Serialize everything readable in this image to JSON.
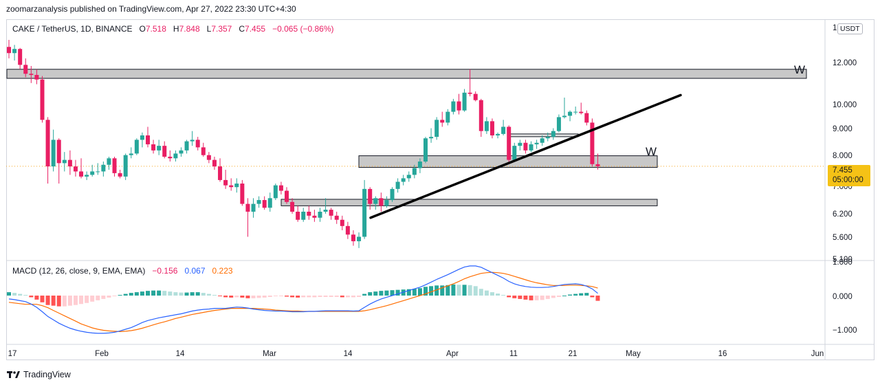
{
  "header": {
    "published": "zoomarzanalysis published on TradingView.com, Apr 27, 2022 23:30 UTC+4:30"
  },
  "legend": {
    "symbol": "CAKE / TetherUS, 1D, BINANCE",
    "o_label": "O",
    "o_value": "7.518",
    "h_label": "H",
    "h_value": "7.848",
    "l_label": "L",
    "l_value": "7.357",
    "c_label": "C",
    "c_value": "7.455",
    "change": "−0.065 (−0.86%)"
  },
  "macd_legend": {
    "name": "MACD (12, 26, close, 9, EMA, EMA)",
    "hist_value": "−0.156",
    "macd_value": "0.067",
    "signal_value": "0.223"
  },
  "currency_button": "USDT",
  "price_badge": {
    "price": "7.455",
    "countdown": "05:00:00"
  },
  "footer": {
    "brand": "TradingView"
  },
  "colors": {
    "up": "#26a69a",
    "down": "#e91e63",
    "macd_line": "#2962ff",
    "signal_line": "#ff6d00",
    "hist_up_strong": "#26a69a",
    "hist_up_weak": "#b2dfdb",
    "hist_down_strong": "#ff5252",
    "hist_down_weak": "#ffcdd2",
    "zone_fill": "#c8c8c8",
    "badge": "#f5c216"
  },
  "chart_data": [
    {
      "type": "candlestick",
      "title": "CAKE / TetherUS, 1D, BINANCE",
      "scale": "log",
      "price_axis_ticks": [
        "1",
        "12.000",
        "10.000",
        "9.000",
        "8.000",
        "7.000",
        "6.200",
        "5.600",
        "5.100"
      ],
      "time_axis_ticks": [
        "17",
        "Feb",
        "14",
        "Mar",
        "14",
        "Apr",
        "11",
        "21",
        "May",
        "16",
        "Jun"
      ],
      "ylim": [
        5.1,
        13.5
      ],
      "last_price": 7.455,
      "candles_ohlc": [
        [
          12.1,
          12.45,
          11.55,
          11.8
        ],
        [
          11.8,
          12.2,
          11.45,
          12.0
        ],
        [
          12.0,
          12.05,
          11.05,
          11.25
        ],
        [
          11.25,
          11.55,
          10.7,
          10.85
        ],
        [
          10.85,
          11.2,
          10.45,
          10.8
        ],
        [
          10.8,
          11.05,
          10.4,
          10.6
        ],
        [
          10.6,
          10.75,
          8.9,
          9.0
        ],
        [
          9.0,
          9.1,
          6.95,
          7.45
        ],
        [
          7.45,
          8.65,
          7.3,
          8.3
        ],
        [
          8.3,
          8.35,
          6.95,
          7.55
        ],
        [
          7.55,
          7.9,
          7.3,
          7.65
        ],
        [
          7.65,
          7.95,
          7.2,
          7.45
        ],
        [
          7.45,
          7.65,
          7.15,
          7.3
        ],
        [
          7.3,
          7.7,
          7.1,
          7.15
        ],
        [
          7.15,
          7.3,
          7.05,
          7.2
        ],
        [
          7.2,
          7.5,
          7.15,
          7.3
        ],
        [
          7.3,
          7.55,
          7.2,
          7.3
        ],
        [
          7.3,
          7.6,
          7.15,
          7.5
        ],
        [
          7.5,
          7.75,
          7.35,
          7.7
        ],
        [
          7.7,
          7.75,
          7.15,
          7.25
        ],
        [
          7.25,
          7.35,
          7.1,
          7.15
        ],
        [
          7.15,
          7.85,
          7.05,
          7.8
        ],
        [
          7.8,
          8.05,
          7.7,
          7.85
        ],
        [
          7.85,
          8.35,
          7.8,
          8.3
        ],
        [
          8.3,
          8.55,
          8.05,
          8.45
        ],
        [
          8.45,
          8.75,
          8.05,
          8.15
        ],
        [
          8.15,
          8.3,
          7.85,
          7.95
        ],
        [
          7.95,
          8.3,
          7.8,
          8.1
        ],
        [
          8.1,
          8.25,
          7.7,
          7.75
        ],
        [
          7.75,
          7.95,
          7.6,
          7.7
        ],
        [
          7.7,
          7.95,
          7.6,
          7.85
        ],
        [
          7.85,
          8.05,
          7.75,
          7.95
        ],
        [
          7.95,
          8.3,
          7.85,
          8.25
        ],
        [
          8.25,
          8.6,
          8.1,
          8.3
        ],
        [
          8.3,
          8.4,
          7.95,
          8.05
        ],
        [
          8.05,
          8.2,
          7.75,
          7.8
        ],
        [
          7.8,
          7.9,
          7.55,
          7.65
        ],
        [
          7.65,
          7.75,
          7.35,
          7.45
        ],
        [
          7.45,
          7.7,
          7.0,
          7.05
        ],
        [
          7.05,
          7.35,
          6.8,
          6.9
        ],
        [
          6.9,
          7.1,
          6.75,
          6.85
        ],
        [
          6.85,
          7.1,
          6.7,
          6.95
        ],
        [
          6.95,
          7.05,
          6.35,
          6.4
        ],
        [
          6.4,
          6.55,
          5.6,
          6.2
        ],
        [
          6.2,
          6.55,
          6.05,
          6.4
        ],
        [
          6.4,
          6.6,
          6.3,
          6.5
        ],
        [
          6.5,
          6.6,
          6.25,
          6.3
        ],
        [
          6.3,
          6.7,
          6.2,
          6.55
        ],
        [
          6.55,
          6.95,
          6.5,
          6.9
        ],
        [
          6.9,
          7.0,
          6.65,
          6.75
        ],
        [
          6.75,
          6.85,
          6.4,
          6.45
        ],
        [
          6.45,
          6.55,
          6.15,
          6.2
        ],
        [
          6.2,
          6.35,
          5.95,
          6.0
        ],
        [
          6.0,
          6.3,
          5.95,
          6.2
        ],
        [
          6.2,
          6.35,
          6.0,
          6.1
        ],
        [
          6.1,
          6.25,
          5.95,
          6.05
        ],
        [
          6.05,
          6.3,
          5.95,
          6.2
        ],
        [
          6.2,
          6.55,
          6.15,
          6.25
        ],
        [
          6.25,
          6.3,
          6.0,
          6.1
        ],
        [
          6.1,
          6.2,
          5.9,
          6.0
        ],
        [
          6.0,
          6.1,
          5.75,
          5.85
        ],
        [
          5.85,
          5.95,
          5.55,
          5.65
        ],
        [
          5.65,
          5.75,
          5.4,
          5.5
        ],
        [
          5.5,
          5.7,
          5.35,
          5.6
        ],
        [
          5.6,
          7.05,
          5.55,
          6.8
        ],
        [
          6.8,
          6.85,
          6.25,
          6.4
        ],
        [
          6.4,
          6.6,
          6.25,
          6.55
        ],
        [
          6.55,
          6.7,
          6.2,
          6.35
        ],
        [
          6.35,
          6.6,
          6.3,
          6.5
        ],
        [
          6.5,
          6.85,
          6.45,
          6.8
        ],
        [
          6.8,
          7.1,
          6.7,
          7.0
        ],
        [
          7.0,
          7.2,
          6.9,
          7.1
        ],
        [
          7.1,
          7.3,
          7.0,
          7.2
        ],
        [
          7.2,
          7.5,
          7.1,
          7.4
        ],
        [
          7.4,
          7.7,
          7.25,
          7.6
        ],
        [
          7.6,
          8.4,
          7.55,
          8.35
        ],
        [
          8.35,
          8.7,
          8.2,
          8.4
        ],
        [
          8.4,
          9.1,
          8.3,
          9.0
        ],
        [
          9.0,
          9.3,
          8.75,
          8.9
        ],
        [
          8.9,
          9.4,
          8.8,
          9.3
        ],
        [
          9.3,
          9.8,
          9.2,
          9.7
        ],
        [
          9.7,
          10.0,
          9.2,
          9.35
        ],
        [
          9.35,
          10.2,
          9.3,
          10.05
        ],
        [
          10.05,
          11.05,
          9.9,
          10.0
        ],
        [
          10.0,
          10.1,
          9.7,
          9.75
        ],
        [
          9.75,
          9.8,
          8.4,
          8.6
        ],
        [
          8.6,
          9.1,
          8.5,
          8.95
        ],
        [
          8.95,
          9.05,
          8.35,
          8.45
        ],
        [
          8.45,
          8.55,
          8.35,
          8.5
        ],
        [
          8.5,
          9.0,
          8.45,
          8.75
        ],
        [
          8.75,
          8.8,
          7.55,
          7.65
        ],
        [
          7.65,
          8.2,
          7.6,
          8.1
        ],
        [
          8.1,
          8.3,
          7.95,
          8.2
        ],
        [
          8.2,
          8.3,
          7.85,
          7.95
        ],
        [
          7.95,
          8.25,
          7.9,
          8.15
        ],
        [
          8.15,
          8.3,
          8.0,
          8.2
        ],
        [
          8.2,
          8.45,
          8.1,
          8.35
        ],
        [
          8.35,
          8.55,
          8.25,
          8.4
        ],
        [
          8.4,
          8.7,
          8.3,
          8.6
        ],
        [
          8.6,
          9.2,
          8.55,
          9.1
        ],
        [
          9.1,
          9.85,
          9.05,
          9.15
        ],
        [
          9.15,
          9.35,
          8.95,
          9.3
        ],
        [
          9.3,
          9.5,
          9.2,
          9.3
        ],
        [
          9.3,
          9.65,
          9.2,
          9.25
        ],
        [
          9.25,
          9.35,
          8.8,
          8.9
        ],
        [
          8.9,
          9.05,
          7.45,
          7.52
        ],
        [
          7.518,
          7.848,
          7.357,
          7.455
        ]
      ],
      "zones": [
        {
          "from": 10.65,
          "to": 11.05
        },
        {
          "from": 7.42,
          "to": 7.78
        },
        {
          "from": 6.35,
          "to": 6.52
        },
        {
          "from": 8.42,
          "to": 8.5
        }
      ],
      "zone_labels": [
        "W",
        "W"
      ],
      "trendline": {
        "start_price": 6.05,
        "end_price": 9.95
      }
    },
    {
      "type": "macd",
      "title": "MACD (12, 26, close, 9, EMA, EMA)",
      "axis_ticks": [
        "1.000",
        "0.000",
        "−1.000"
      ],
      "ylim": [
        -1.2,
        1.0
      ],
      "histogram": [
        0.1,
        0.08,
        0.05,
        0.02,
        -0.05,
        -0.12,
        -0.2,
        -0.28,
        -0.3,
        -0.32,
        -0.32,
        -0.3,
        -0.28,
        -0.25,
        -0.22,
        -0.18,
        -0.14,
        -0.1,
        -0.06,
        -0.02,
        0.02,
        0.05,
        0.08,
        0.1,
        0.12,
        0.14,
        0.15,
        0.15,
        0.14,
        0.12,
        0.1,
        0.09,
        0.09,
        0.1,
        0.1,
        0.08,
        0.05,
        0.02,
        -0.02,
        -0.05,
        -0.06,
        -0.05,
        -0.06,
        -0.08,
        -0.08,
        -0.07,
        -0.06,
        -0.04,
        -0.02,
        -0.02,
        -0.03,
        -0.05,
        -0.06,
        -0.05,
        -0.05,
        -0.05,
        -0.04,
        -0.04,
        -0.04,
        -0.04,
        -0.05,
        -0.05,
        -0.05,
        -0.04,
        0.05,
        0.1,
        0.12,
        0.14,
        0.15,
        0.16,
        0.17,
        0.18,
        0.19,
        0.2,
        0.22,
        0.26,
        0.28,
        0.3,
        0.3,
        0.31,
        0.33,
        0.32,
        0.32,
        0.31,
        0.28,
        0.2,
        0.15,
        0.1,
        0.06,
        0.02,
        -0.05,
        -0.08,
        -0.1,
        -0.12,
        -0.14,
        -0.14,
        -0.13,
        -0.1,
        -0.07,
        -0.04,
        0.0,
        0.03,
        0.05,
        0.07,
        0.08,
        -0.05,
        -0.156
      ],
      "macd_line": [
        -0.1,
        -0.12,
        -0.15,
        -0.18,
        -0.25,
        -0.35,
        -0.48,
        -0.62,
        -0.72,
        -0.82,
        -0.9,
        -0.97,
        -1.02,
        -1.06,
        -1.09,
        -1.11,
        -1.12,
        -1.12,
        -1.11,
        -1.09,
        -1.05,
        -1.0,
        -0.95,
        -0.88,
        -0.8,
        -0.74,
        -0.7,
        -0.66,
        -0.63,
        -0.6,
        -0.57,
        -0.54,
        -0.5,
        -0.46,
        -0.43,
        -0.41,
        -0.4,
        -0.38,
        -0.38,
        -0.38,
        -0.36,
        -0.34,
        -0.35,
        -0.37,
        -0.4,
        -0.42,
        -0.44,
        -0.45,
        -0.46,
        -0.46,
        -0.47,
        -0.48,
        -0.48,
        -0.48,
        -0.47,
        -0.47,
        -0.46,
        -0.45,
        -0.45,
        -0.45,
        -0.45,
        -0.45,
        -0.46,
        -0.45,
        -0.35,
        -0.25,
        -0.17,
        -0.1,
        -0.05,
        0.0,
        0.05,
        0.1,
        0.15,
        0.2,
        0.25,
        0.32,
        0.4,
        0.48,
        0.55,
        0.62,
        0.7,
        0.78,
        0.85,
        0.88,
        0.88,
        0.84,
        0.76,
        0.68,
        0.6,
        0.52,
        0.42,
        0.35,
        0.3,
        0.27,
        0.25,
        0.24,
        0.24,
        0.25,
        0.27,
        0.3,
        0.33,
        0.34,
        0.35,
        0.33,
        0.28,
        0.2,
        0.067
      ],
      "signal_line": [
        -0.2,
        -0.22,
        -0.24,
        -0.26,
        -0.26,
        -0.26,
        -0.3,
        -0.36,
        -0.44,
        -0.52,
        -0.6,
        -0.68,
        -0.76,
        -0.84,
        -0.9,
        -0.96,
        -1.0,
        -1.03,
        -1.05,
        -1.06,
        -1.07,
        -1.06,
        -1.04,
        -1.01,
        -0.97,
        -0.92,
        -0.87,
        -0.82,
        -0.78,
        -0.73,
        -0.68,
        -0.64,
        -0.6,
        -0.56,
        -0.53,
        -0.5,
        -0.47,
        -0.44,
        -0.42,
        -0.4,
        -0.38,
        -0.38,
        -0.38,
        -0.38,
        -0.38,
        -0.39,
        -0.4,
        -0.41,
        -0.43,
        -0.44,
        -0.45,
        -0.46,
        -0.46,
        -0.47,
        -0.47,
        -0.47,
        -0.47,
        -0.47,
        -0.47,
        -0.47,
        -0.47,
        -0.47,
        -0.47,
        -0.47,
        -0.45,
        -0.42,
        -0.38,
        -0.34,
        -0.3,
        -0.25,
        -0.2,
        -0.15,
        -0.1,
        -0.05,
        0.0,
        0.05,
        0.11,
        0.17,
        0.23,
        0.29,
        0.35,
        0.42,
        0.5,
        0.56,
        0.61,
        0.66,
        0.68,
        0.69,
        0.68,
        0.66,
        0.62,
        0.57,
        0.52,
        0.47,
        0.42,
        0.38,
        0.35,
        0.32,
        0.3,
        0.3,
        0.3,
        0.31,
        0.31,
        0.3,
        0.29,
        0.27,
        0.223
      ]
    }
  ]
}
